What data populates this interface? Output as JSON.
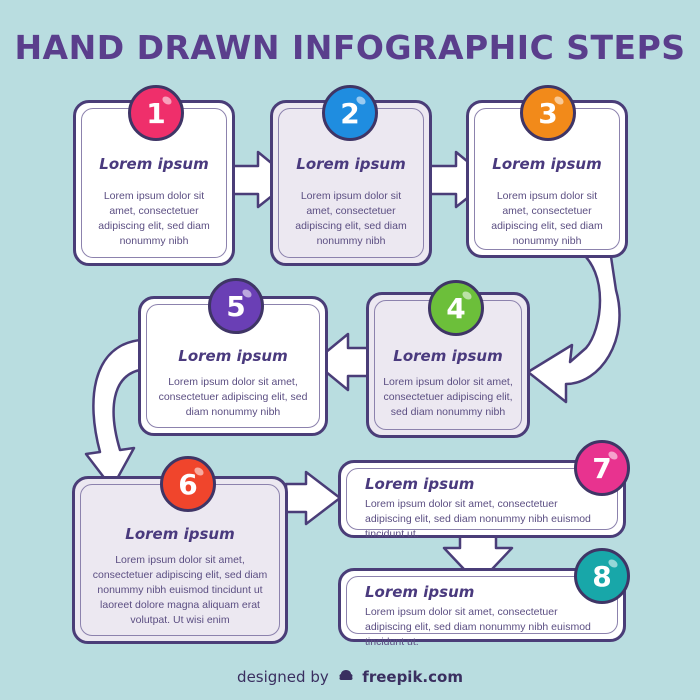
{
  "title": "HAND DRAWN INFOGRAPHIC STEPS",
  "colors": {
    "background": "#b9dde0",
    "outline": "#4a3d78"
  },
  "steps": [
    {
      "number": "1",
      "heading": "Lorem ipsum",
      "text": "Lorem ipsum dolor sit amet, consectetuer adipiscing elit, sed diam nonummy nibh",
      "color": "#ef2f6b"
    },
    {
      "number": "2",
      "heading": "Lorem ipsum",
      "text": "Lorem ipsum dolor sit amet, consectetuer adipiscing elit, sed diam nonummy nibh",
      "color": "#1f8de0"
    },
    {
      "number": "3",
      "heading": "Lorem ipsum",
      "text": "Lorem ipsum dolor sit amet, consectetuer adipiscing elit, sed diam nonummy nibh",
      "color": "#f28a1a"
    },
    {
      "number": "4",
      "heading": "Lorem ipsum",
      "text": "Lorem ipsum dolor sit amet, consectetuer adipiscing elit, sed diam nonummy nibh",
      "color": "#6cbf3a"
    },
    {
      "number": "5",
      "heading": "Lorem ipsum",
      "text": "Lorem ipsum dolor sit amet, consectetuer adipiscing elit, sed diam nonummy nibh",
      "color": "#6a3fb5"
    },
    {
      "number": "6",
      "heading": "Lorem ipsum",
      "text": "Lorem ipsum dolor sit amet, consectetuer adipiscing elit, sed diam nonummy nibh euismod tincidunt ut laoreet dolore magna aliquam erat volutpat. Ut wisi enim",
      "color": "#f0452c"
    },
    {
      "number": "7",
      "heading": "Lorem ipsum",
      "text": "Lorem ipsum dolor sit amet, consectetuer adipiscing elit, sed diam nonummy nibh euismod tincidunt ut.",
      "color": "#e8338f"
    },
    {
      "number": "8",
      "heading": "Lorem ipsum",
      "text": "Lorem ipsum dolor sit amet, consectetuer adipiscing elit, sed diam nonummy nibh euismod tincidunt ut.",
      "color": "#18a7a9"
    }
  ],
  "footer": {
    "prefix": "designed by",
    "logo_icon": "freepik-logo-icon",
    "brand": "freepik.com"
  }
}
